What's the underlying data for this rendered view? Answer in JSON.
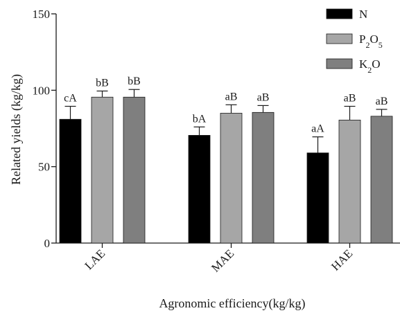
{
  "chart_data": {
    "type": "bar",
    "categories": [
      "LAE",
      "MAE",
      "HAE"
    ],
    "xlabel": "Agronomic efficiency(kg/kg)",
    "ylabel": "Related yields (kg/kg)",
    "ylim": [
      0,
      150
    ],
    "yticks": [
      0,
      50,
      100,
      150
    ],
    "grid": false,
    "legend": "top-right",
    "series": [
      {
        "name": "N",
        "color": "#000000",
        "values": [
          81,
          70.5,
          59
        ],
        "errors": [
          8.5,
          5.5,
          10.5
        ],
        "labels": [
          "cA",
          "bA",
          "aA"
        ]
      },
      {
        "name": "P2O5",
        "color": "#a6a6a6",
        "values": [
          95.5,
          85,
          80.5
        ],
        "errors": [
          4,
          5.5,
          9
        ],
        "labels": [
          "bB",
          "aB",
          "aB"
        ]
      },
      {
        "name": "K2O",
        "color": "#7f7f7f",
        "values": [
          95.5,
          85.5,
          83
        ],
        "errors": [
          5,
          4.5,
          4.5
        ],
        "labels": [
          "bB",
          "aB",
          "aB"
        ]
      }
    ]
  }
}
